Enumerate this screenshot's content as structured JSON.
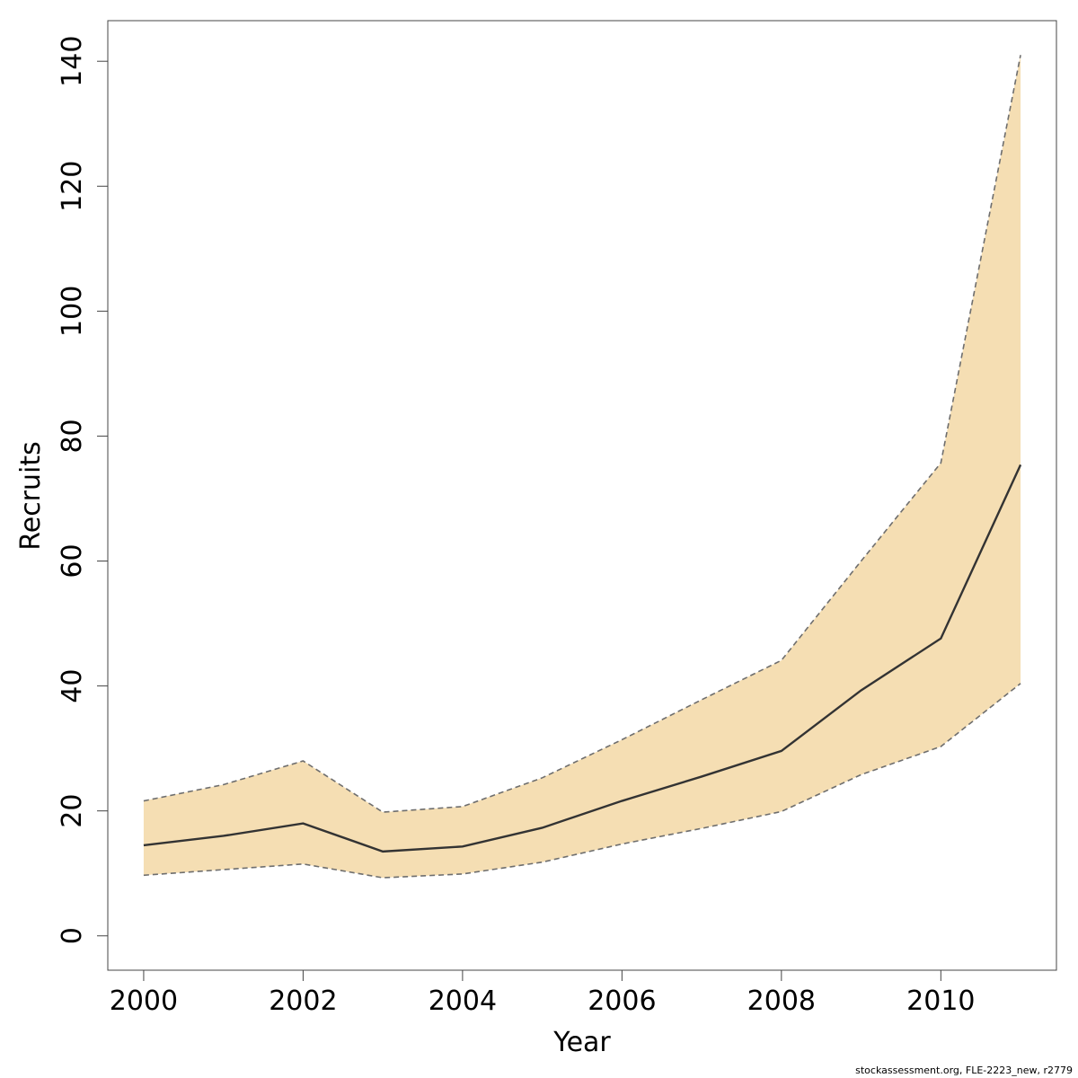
{
  "chart_data": {
    "type": "line",
    "xlabel": "Year",
    "ylabel": "Recruits",
    "x": [
      2000,
      2001,
      2002,
      2003,
      2004,
      2005,
      2006,
      2007,
      2008,
      2009,
      2010,
      2011
    ],
    "series": [
      {
        "values": [
          14.5,
          16.0,
          18.0,
          13.5,
          14.3,
          17.3,
          21.6,
          25.5,
          29.6,
          39.3,
          47.6,
          75.4
        ]
      }
    ],
    "band": {
      "upper": [
        21.6,
        24.2,
        28.0,
        19.8,
        20.7,
        25.3,
        31.4,
        37.8,
        44.1,
        60.0,
        75.7,
        141.0
      ],
      "lower": [
        9.7,
        10.6,
        11.5,
        9.3,
        9.9,
        11.8,
        14.7,
        17.2,
        19.9,
        25.8,
        30.3,
        40.4
      ]
    },
    "xlim": [
      1999.55,
      2011.45
    ],
    "ylim": [
      -5.5,
      146.5
    ],
    "xticks": [
      "2000",
      "2002",
      "2004",
      "2006",
      "2008",
      "2010"
    ],
    "yticks": [
      "0",
      "20",
      "40",
      "60",
      "80",
      "100",
      "120",
      "140"
    ],
    "grid": false,
    "colors": {
      "band": "#f5deb3",
      "line": "#333333",
      "band_edge": "#6e6e6e"
    }
  },
  "footer": {
    "credit": "stockassessment.org, FLE-2223_new, r2779"
  }
}
